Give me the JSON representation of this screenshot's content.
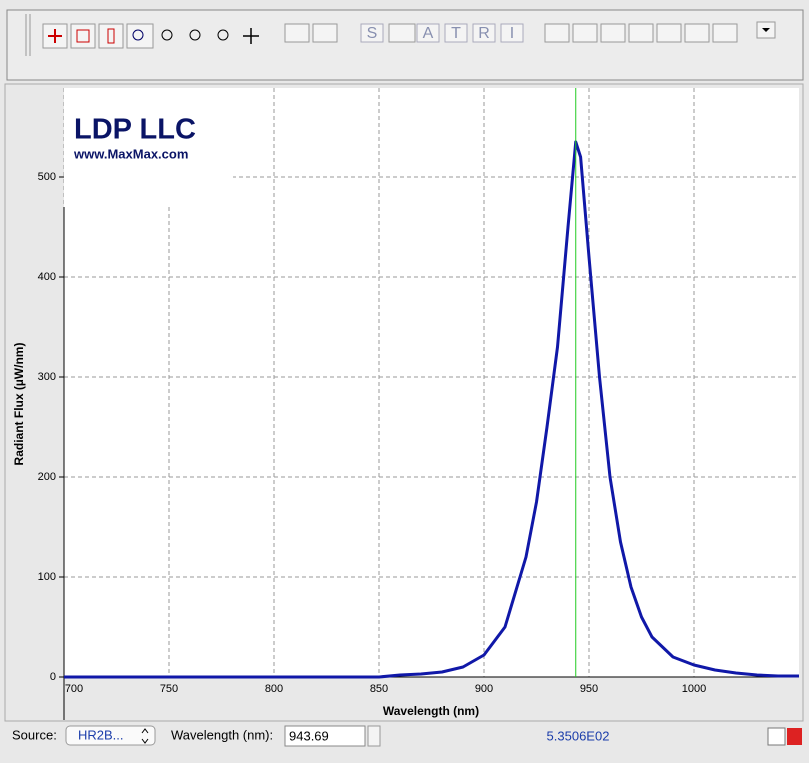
{
  "toolbar": {
    "letters": [
      "S",
      "A",
      "T",
      "R",
      "I"
    ]
  },
  "chart_data": {
    "type": "line",
    "logo_title": "LDP LLC",
    "logo_url": "www.MaxMax.com",
    "x_label": "Wavelength (nm)",
    "y_label": "Radiant Flux (µW/nm)",
    "x": [
      700,
      750,
      800,
      850,
      860,
      870,
      880,
      890,
      900,
      910,
      920,
      925,
      930,
      935,
      940,
      943.69,
      946,
      950,
      955,
      960,
      965,
      970,
      975,
      980,
      990,
      1000,
      1010,
      1020,
      1030,
      1040,
      1050
    ],
    "series": [
      {
        "name": "Radiant Flux",
        "color": "#1018a8",
        "values": [
          0,
          0,
          0,
          0,
          2,
          3,
          5,
          10,
          22,
          50,
          120,
          175,
          250,
          330,
          450,
          535.06,
          520,
          420,
          300,
          200,
          135,
          90,
          60,
          40,
          20,
          12,
          7,
          4,
          2,
          1,
          1
        ]
      }
    ],
    "xlim": [
      700,
      1050
    ],
    "ylim": [
      0,
      589
    ],
    "xticks": [
      700,
      750,
      800,
      850,
      900,
      950,
      1000
    ],
    "yticks": [
      0,
      100,
      200,
      300,
      400,
      500
    ],
    "grid": true,
    "cursor_color": "#22cc22"
  },
  "status_bar": {
    "source_label": "Source:",
    "source_value": "HR2B...",
    "wavelength_label": "Wavelength (nm):",
    "wavelength_value": 943.69,
    "reading": "5.3506E02"
  }
}
